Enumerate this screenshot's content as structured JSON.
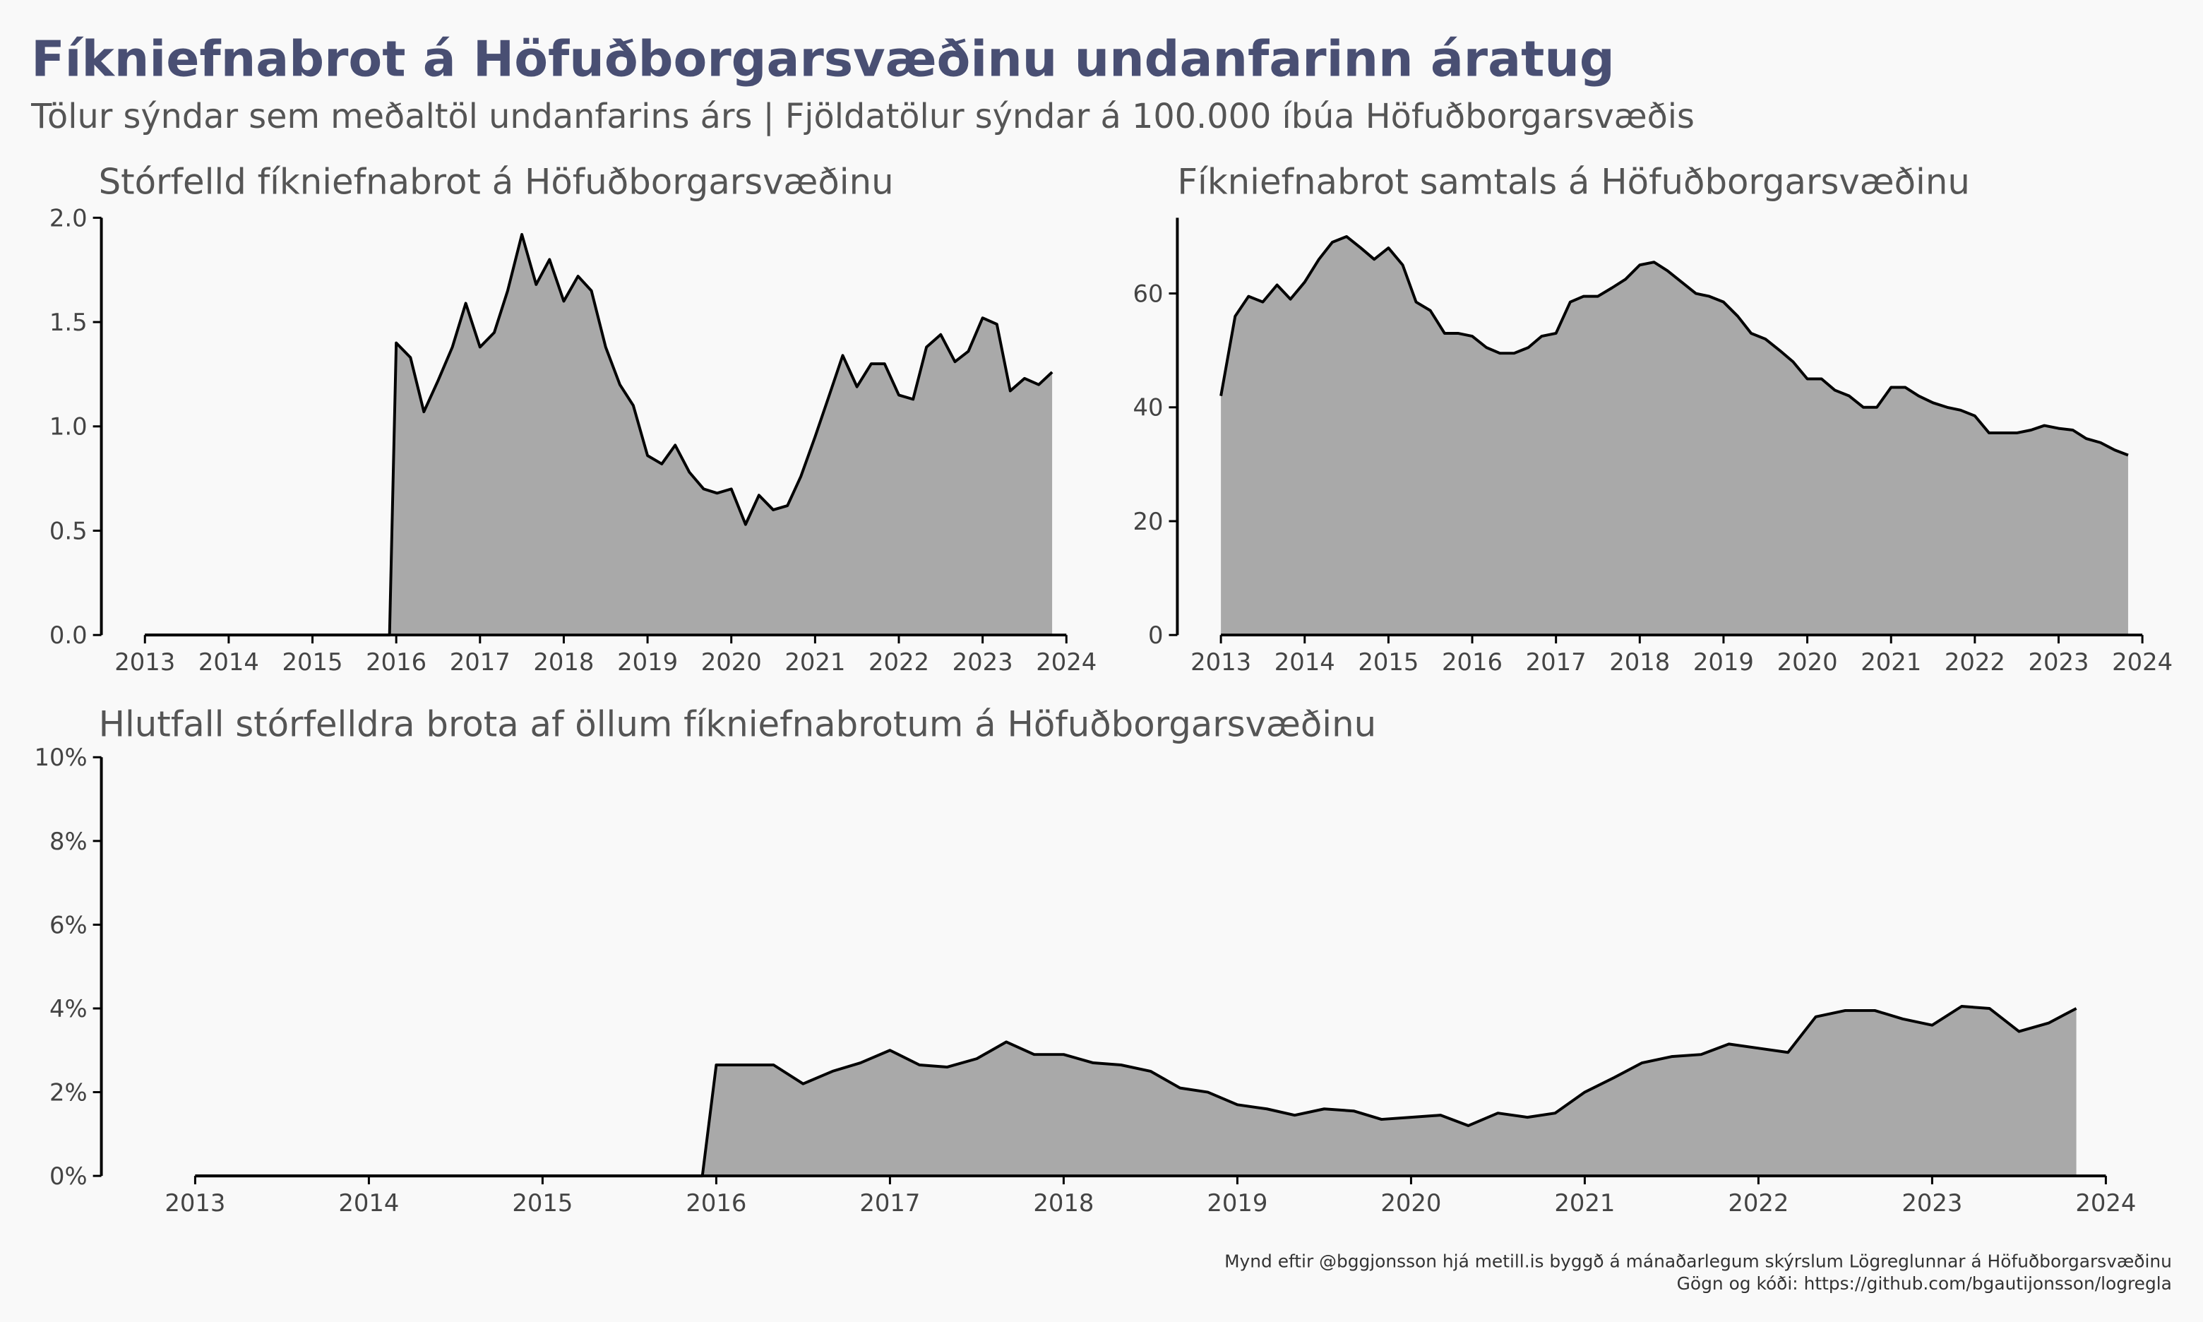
{
  "title": "Fíkniefnabrot á Höfuðborgarsvæðinu undanfarinn áratug",
  "subtitle": "Tölur sýndar sem meðaltöl undanfarins árs | Fjöldatölur sýndar á 100.000 íbúa Höfuðborgarsvæðis",
  "caption": [
    "Mynd eftir @bggjonsson hjá metill.is byggð á mánaðarlegum skýrslum Lögreglunnar á Höfuðborgarsvæðinu",
    "Gögn og kóði: https://github.com/bgautijonsson/logregla"
  ],
  "chart_data": [
    {
      "type": "area",
      "title": "Stórfelld fíkniefnabrot á Höfuðborgarsvæðinu",
      "color": "#a9a9a9",
      "line_color": "#000000",
      "x": [
        2013,
        2015.92,
        2016,
        2016.17,
        2016.33,
        2016.5,
        2016.67,
        2016.83,
        2017,
        2017.17,
        2017.33,
        2017.5,
        2017.67,
        2017.83,
        2018,
        2018.17,
        2018.33,
        2018.5,
        2018.67,
        2018.83,
        2019,
        2019.17,
        2019.33,
        2019.5,
        2019.67,
        2019.83,
        2020,
        2020.17,
        2020.33,
        2020.5,
        2020.67,
        2020.83,
        2021,
        2021.17,
        2021.33,
        2021.5,
        2021.67,
        2021.83,
        2022,
        2022.17,
        2022.33,
        2022.5,
        2022.67,
        2022.83,
        2023,
        2023.17,
        2023.33,
        2023.5,
        2023.67,
        2023.83
      ],
      "values": [
        0,
        0,
        1.4,
        1.33,
        1.07,
        1.22,
        1.38,
        1.59,
        1.38,
        1.45,
        1.65,
        1.92,
        1.68,
        1.8,
        1.6,
        1.72,
        1.65,
        1.38,
        1.2,
        1.1,
        0.86,
        0.82,
        0.91,
        0.78,
        0.7,
        0.68,
        0.7,
        0.53,
        0.67,
        0.6,
        0.62,
        0.76,
        0.95,
        1.15,
        1.34,
        1.19,
        1.3,
        1.3,
        1.15,
        1.13,
        1.38,
        1.44,
        1.31,
        1.36,
        1.52,
        1.49,
        1.17,
        1.23,
        1.2,
        1.26
      ],
      "xlim": [
        2012.48,
        2024
      ],
      "xticks": [
        2013,
        2014,
        2015,
        2016,
        2017,
        2018,
        2019,
        2020,
        2021,
        2022,
        2023,
        2024
      ],
      "ylim": [
        0,
        2
      ],
      "yticks": [
        {
          "value": 0,
          "label": "0.0"
        },
        0.5,
        {
          "value": 1,
          "label": "1.0"
        },
        1.5,
        {
          "value": 2,
          "label": "2.0"
        }
      ]
    },
    {
      "type": "area",
      "title": "Fíkniefnabrot samtals á Höfuðborgarsvæðinu",
      "color": "#a9a9a9",
      "line_color": "#000000",
      "x": [
        2013,
        2013.17,
        2013.33,
        2013.5,
        2013.67,
        2013.83,
        2014,
        2014.17,
        2014.33,
        2014.5,
        2014.67,
        2014.83,
        2015,
        2015.17,
        2015.33,
        2015.5,
        2015.67,
        2015.83,
        2016,
        2016.17,
        2016.33,
        2016.5,
        2016.67,
        2016.83,
        2017,
        2017.17,
        2017.33,
        2017.5,
        2017.67,
        2017.83,
        2018,
        2018.17,
        2018.33,
        2018.5,
        2018.67,
        2018.83,
        2019,
        2019.17,
        2019.33,
        2019.5,
        2019.67,
        2019.83,
        2020,
        2020.17,
        2020.33,
        2020.5,
        2020.67,
        2020.83,
        2021,
        2021.17,
        2021.33,
        2021.5,
        2021.67,
        2021.83,
        2022,
        2022.17,
        2022.33,
        2022.5,
        2022.67,
        2022.83,
        2023,
        2023.17,
        2023.33,
        2023.5,
        2023.67,
        2023.83
      ],
      "values": [
        42,
        56,
        59.5,
        58.5,
        61.5,
        59,
        62,
        66,
        69,
        70,
        68,
        66,
        68,
        65,
        58.5,
        57,
        53,
        53,
        52.5,
        50.5,
        49.5,
        49.5,
        50.5,
        52.5,
        53,
        58.5,
        59.5,
        59.5,
        61,
        62.5,
        65,
        65.5,
        64,
        62,
        60,
        59.5,
        58.5,
        56,
        53,
        52,
        50,
        48,
        45,
        45,
        43,
        42,
        40,
        40,
        43.5,
        43.5,
        42,
        40.8,
        40,
        39.5,
        38.5,
        35.5,
        35.5,
        35.5,
        36,
        36.8,
        36.3,
        36,
        34.5,
        33.8,
        32.5,
        31.6
      ],
      "xlim": [
        2012.48,
        2024
      ],
      "xticks": [
        2013,
        2014,
        2015,
        2016,
        2017,
        2018,
        2019,
        2020,
        2021,
        2022,
        2023,
        2024
      ],
      "ylim": [
        0,
        73.3
      ],
      "yticks": [
        0,
        20,
        40,
        60
      ]
    },
    {
      "type": "area",
      "title": "Hlutfall stórfelldra brota af öllum fíkniefnabrotum á Höfuðborgarsvæðinu",
      "color": "#a9a9a9",
      "line_color": "#000000",
      "x": [
        2013,
        2015.92,
        2016,
        2016.17,
        2016.33,
        2016.5,
        2016.67,
        2016.83,
        2017,
        2017.17,
        2017.33,
        2017.5,
        2017.67,
        2017.83,
        2018,
        2018.17,
        2018.33,
        2018.5,
        2018.67,
        2018.83,
        2019,
        2019.17,
        2019.33,
        2019.5,
        2019.67,
        2019.83,
        2020,
        2020.17,
        2020.33,
        2020.5,
        2020.67,
        2020.83,
        2021,
        2021.17,
        2021.33,
        2021.5,
        2021.67,
        2021.83,
        2022,
        2022.17,
        2022.33,
        2022.5,
        2022.67,
        2022.83,
        2023,
        2023.17,
        2023.33,
        2023.5,
        2023.67,
        2023.83
      ],
      "values": [
        0,
        0,
        2.65,
        2.65,
        2.65,
        2.2,
        2.5,
        2.7,
        3.0,
        2.65,
        2.6,
        2.8,
        3.2,
        2.9,
        2.9,
        2.7,
        2.65,
        2.5,
        2.1,
        2.0,
        1.7,
        1.6,
        1.45,
        1.6,
        1.55,
        1.35,
        1.4,
        1.45,
        1.2,
        1.5,
        1.4,
        1.5,
        2.0,
        2.35,
        2.7,
        2.85,
        2.9,
        3.15,
        3.05,
        2.95,
        3.8,
        3.95,
        3.95,
        3.75,
        3.6,
        4.05,
        4.0,
        3.45,
        3.65,
        4.0
      ],
      "xlim": [
        2012.46,
        2024
      ],
      "xticks": [
        2013,
        2014,
        2015,
        2016,
        2017,
        2018,
        2019,
        2020,
        2021,
        2022,
        2023,
        2024
      ],
      "ylim": [
        0,
        10
      ],
      "yticks": [
        {
          "value": 0,
          "label": "0%"
        },
        {
          "value": 2,
          "label": "2%"
        },
        {
          "value": 4,
          "label": "4%"
        },
        {
          "value": 6,
          "label": "6%"
        },
        {
          "value": 8,
          "label": "8%"
        },
        {
          "value": 10,
          "label": "10%"
        }
      ]
    }
  ]
}
